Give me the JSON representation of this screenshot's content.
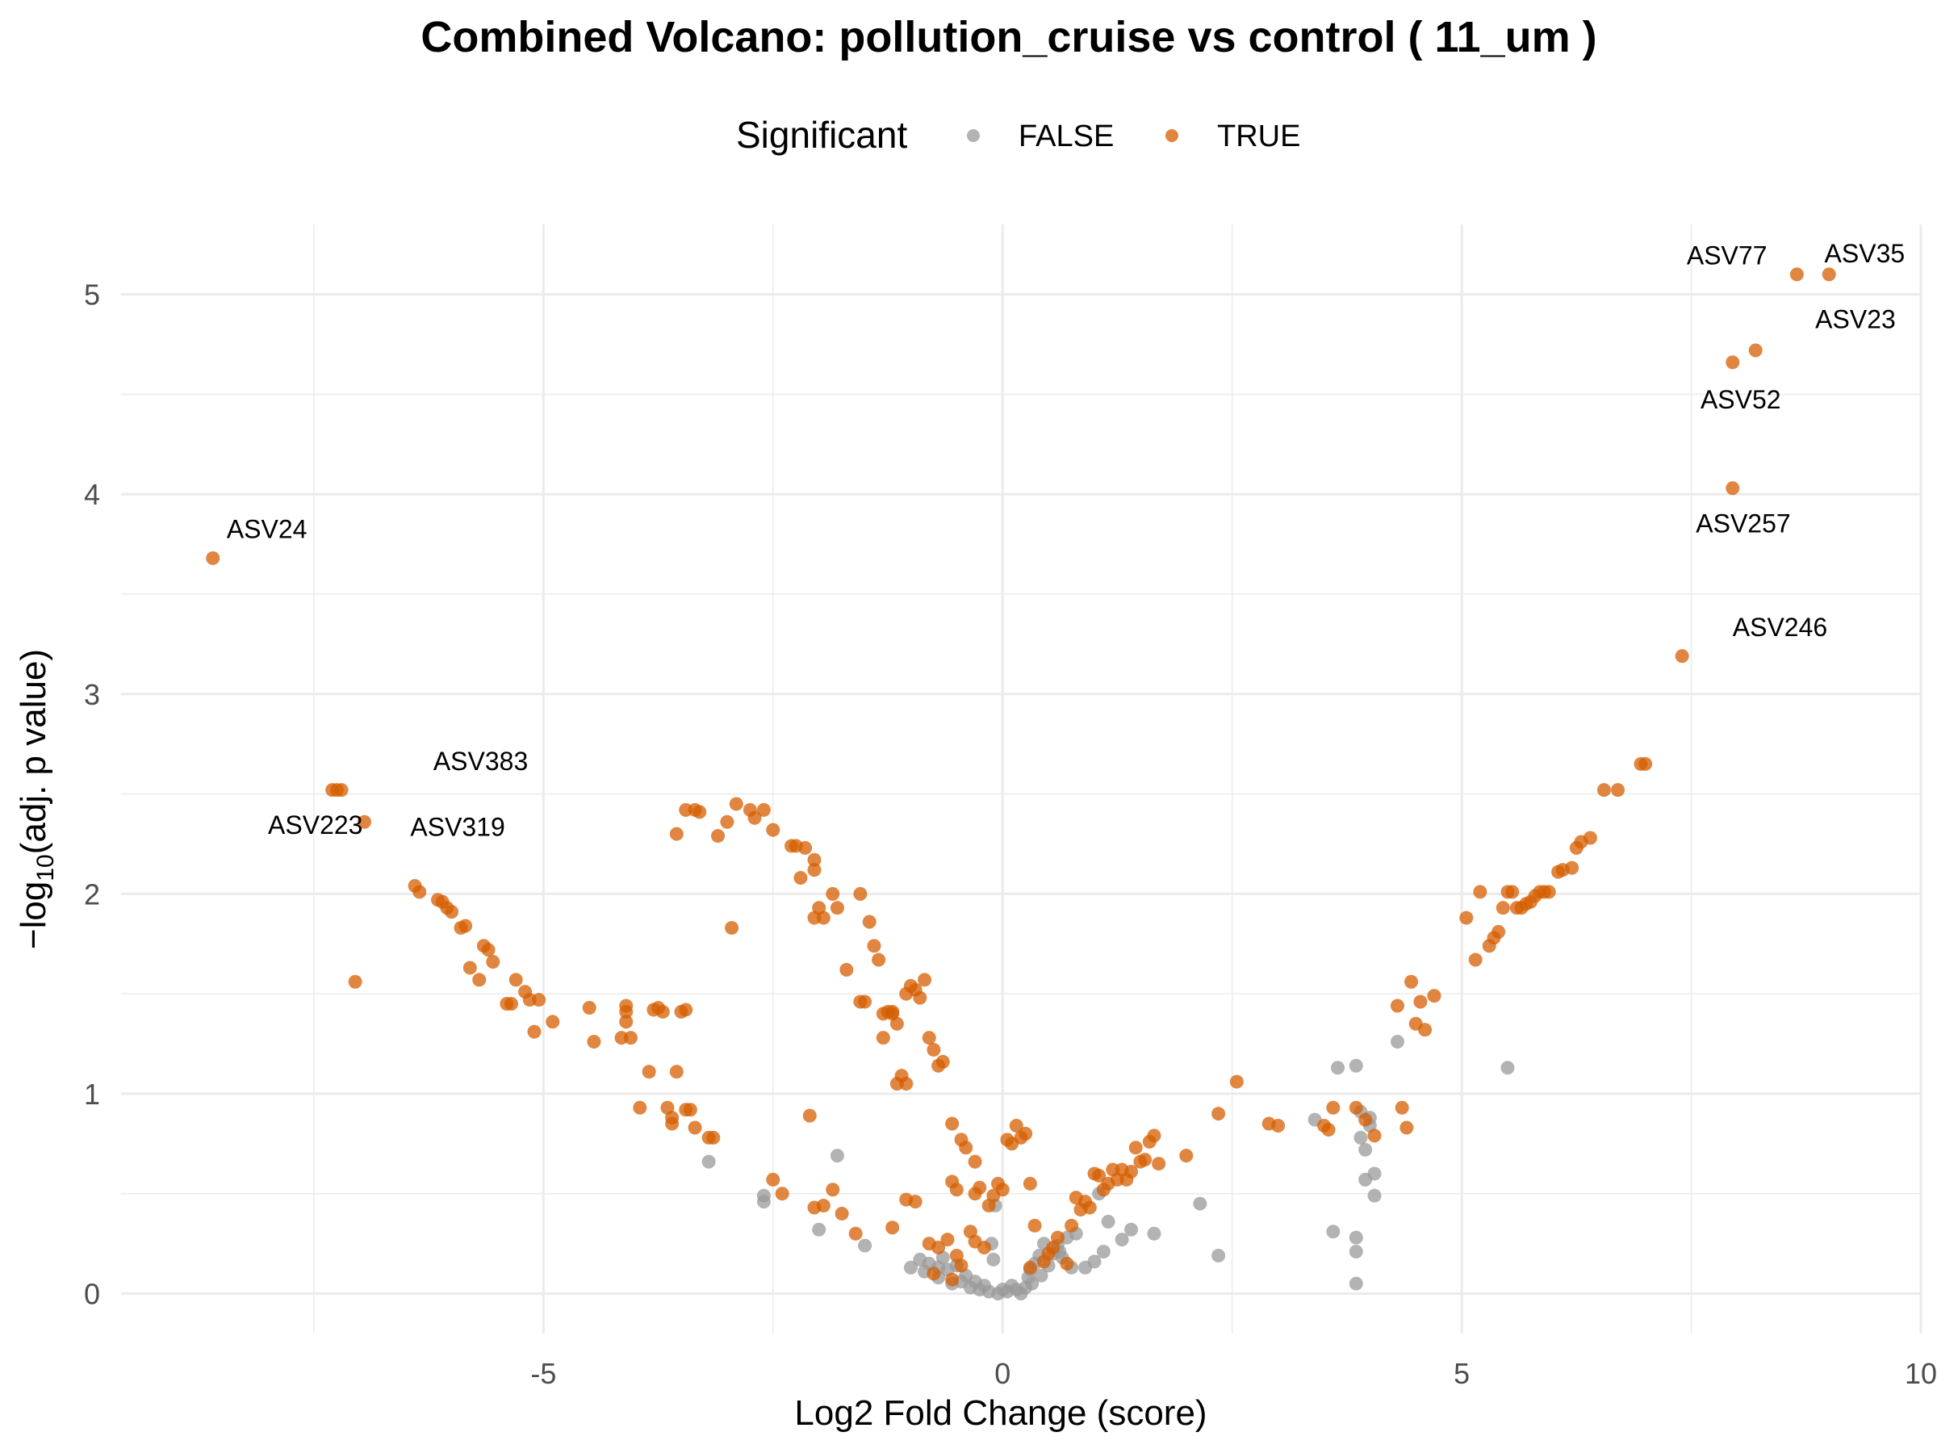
{
  "chart_data": {
    "type": "scatter",
    "title": "Combined Volcano: pollution_cruise vs control ( 11_um )",
    "xlabel": "Log2 Fold Change (score)",
    "ylabel_prefix": "−log",
    "ylabel_sub": "10",
    "ylabel_suffix": "(adj. p value)",
    "xlim": [
      -9.6,
      10.0
    ],
    "ylim": [
      -0.2,
      5.35
    ],
    "x_ticks": [
      -5,
      0,
      5,
      10
    ],
    "x_tick_labels": [
      "-5",
      "0",
      "5",
      "10"
    ],
    "y_ticks": [
      0,
      1,
      2,
      3,
      4,
      5
    ],
    "y_tick_labels": [
      "0",
      "1",
      "2",
      "3",
      "4",
      "5"
    ],
    "grid": true,
    "legend": {
      "title": "Significant",
      "position": "top",
      "entries": [
        {
          "label": "FALSE",
          "color": "#999999"
        },
        {
          "label": "TRUE",
          "color": "#d55e00"
        }
      ]
    },
    "colors": {
      "FALSE": "#999999",
      "TRUE": "#d55e00"
    },
    "series": [
      {
        "name": "FALSE",
        "color": "#999999",
        "points": [
          [
            -3.2,
            0.66
          ],
          [
            -2.6,
            0.46
          ],
          [
            -2.6,
            0.49
          ],
          [
            -1.8,
            0.69
          ],
          [
            -2.0,
            0.32
          ],
          [
            -1.5,
            0.24
          ],
          [
            -1.0,
            0.13
          ],
          [
            -0.9,
            0.17
          ],
          [
            -0.85,
            0.11
          ],
          [
            -0.8,
            0.15
          ],
          [
            -0.7,
            0.08
          ],
          [
            -0.65,
            0.18
          ],
          [
            -0.6,
            0.12
          ],
          [
            -0.55,
            0.05
          ],
          [
            -0.5,
            0.14
          ],
          [
            -0.4,
            0.09
          ],
          [
            -0.35,
            0.03
          ],
          [
            -0.3,
            0.06
          ],
          [
            -0.25,
            0.02
          ],
          [
            -0.2,
            0.04
          ],
          [
            -0.15,
            0.01
          ],
          [
            -0.12,
            0.25
          ],
          [
            -0.1,
            0.17
          ],
          [
            -0.08,
            0.44
          ],
          [
            -0.05,
            0.0
          ],
          [
            0.0,
            0.02
          ],
          [
            0.05,
            0.01
          ],
          [
            0.1,
            0.04
          ],
          [
            0.15,
            0.02
          ],
          [
            0.2,
            0.0
          ],
          [
            0.25,
            0.03
          ],
          [
            0.3,
            0.12
          ],
          [
            0.32,
            0.05
          ],
          [
            0.35,
            0.15
          ],
          [
            0.4,
            0.19
          ],
          [
            0.42,
            0.09
          ],
          [
            0.45,
            0.25
          ],
          [
            0.5,
            0.14
          ],
          [
            0.55,
            0.2
          ],
          [
            0.6,
            0.24
          ],
          [
            0.65,
            0.18
          ],
          [
            0.7,
            0.28
          ],
          [
            0.75,
            0.13
          ],
          [
            0.8,
            0.3
          ],
          [
            0.9,
            0.13
          ],
          [
            1.0,
            0.16
          ],
          [
            1.05,
            0.5
          ],
          [
            1.1,
            0.21
          ],
          [
            1.15,
            0.36
          ],
          [
            1.3,
            0.27
          ],
          [
            1.4,
            0.32
          ],
          [
            1.65,
            0.3
          ],
          [
            2.15,
            0.45
          ],
          [
            2.35,
            0.19
          ],
          [
            3.4,
            0.87
          ],
          [
            3.6,
            0.31
          ],
          [
            3.65,
            1.13
          ],
          [
            3.85,
            1.14
          ],
          [
            3.85,
            0.28
          ],
          [
            3.85,
            0.05
          ],
          [
            3.85,
            0.21
          ],
          [
            3.9,
            0.91
          ],
          [
            3.9,
            0.78
          ],
          [
            3.95,
            0.72
          ],
          [
            3.95,
            0.57
          ],
          [
            4.0,
            0.88
          ],
          [
            4.0,
            0.84
          ],
          [
            4.05,
            0.6
          ],
          [
            4.05,
            0.49
          ],
          [
            4.3,
            1.26
          ],
          [
            5.5,
            1.13
          ],
          [
            -0.45,
            0.06
          ],
          [
            -0.7,
            0.13
          ],
          [
            0.28,
            0.08
          ],
          [
            0.62,
            0.21
          ]
        ]
      },
      {
        "name": "TRUE",
        "color": "#d55e00",
        "points": [
          [
            -8.6,
            3.68
          ],
          [
            -7.3,
            2.52
          ],
          [
            -7.25,
            2.52
          ],
          [
            -7.2,
            2.52
          ],
          [
            -7.05,
            1.56
          ],
          [
            -6.95,
            2.36
          ],
          [
            -6.4,
            2.04
          ],
          [
            -6.35,
            2.01
          ],
          [
            -6.15,
            1.97
          ],
          [
            -6.1,
            1.96
          ],
          [
            -6.05,
            1.93
          ],
          [
            -6.0,
            1.91
          ],
          [
            -5.9,
            1.83
          ],
          [
            -5.85,
            1.84
          ],
          [
            -5.8,
            1.63
          ],
          [
            -5.7,
            1.57
          ],
          [
            -5.65,
            1.74
          ],
          [
            -5.6,
            1.72
          ],
          [
            -5.55,
            1.66
          ],
          [
            -5.4,
            1.45
          ],
          [
            -5.35,
            1.45
          ],
          [
            -5.3,
            1.57
          ],
          [
            -5.2,
            1.51
          ],
          [
            -5.15,
            1.47
          ],
          [
            -5.1,
            1.31
          ],
          [
            -5.05,
            1.47
          ],
          [
            -4.9,
            1.36
          ],
          [
            -4.5,
            1.43
          ],
          [
            -4.45,
            1.26
          ],
          [
            -4.15,
            1.28
          ],
          [
            -4.1,
            1.44
          ],
          [
            -4.1,
            1.41
          ],
          [
            -4.1,
            1.36
          ],
          [
            -4.05,
            1.28
          ],
          [
            -3.95,
            0.93
          ],
          [
            -3.85,
            1.11
          ],
          [
            -3.8,
            1.42
          ],
          [
            -3.75,
            1.43
          ],
          [
            -3.7,
            1.41
          ],
          [
            -3.65,
            0.93
          ],
          [
            -3.6,
            0.88
          ],
          [
            -3.6,
            0.85
          ],
          [
            -3.55,
            1.11
          ],
          [
            -3.5,
            1.41
          ],
          [
            -3.45,
            1.42
          ],
          [
            -3.45,
            0.92
          ],
          [
            -3.4,
            0.92
          ],
          [
            -3.35,
            0.83
          ],
          [
            -3.2,
            0.78
          ],
          [
            -3.15,
            0.78
          ],
          [
            -3.0,
            2.36
          ],
          [
            -2.9,
            2.45
          ],
          [
            -2.75,
            2.42
          ],
          [
            -2.7,
            2.38
          ],
          [
            -2.6,
            2.42
          ],
          [
            -2.5,
            2.32
          ],
          [
            -2.3,
            2.24
          ],
          [
            -2.25,
            2.24
          ],
          [
            -2.15,
            2.23
          ],
          [
            -2.05,
            2.17
          ],
          [
            -2.05,
            2.12
          ],
          [
            -2.2,
            2.08
          ],
          [
            -2.0,
            1.93
          ],
          [
            -2.05,
            1.88
          ],
          [
            -1.95,
            1.88
          ],
          [
            -1.85,
            2.0
          ],
          [
            -1.8,
            1.93
          ],
          [
            -1.55,
            2.0
          ],
          [
            -1.45,
            1.86
          ],
          [
            -1.4,
            1.74
          ],
          [
            -1.35,
            1.67
          ],
          [
            -1.25,
            1.41
          ],
          [
            -1.2,
            1.41
          ],
          [
            -1.15,
            1.05
          ],
          [
            -1.1,
            1.09
          ],
          [
            -1.05,
            1.05
          ],
          [
            -1.0,
            1.54
          ],
          [
            -0.95,
            1.52
          ],
          [
            -0.9,
            1.48
          ],
          [
            -0.85,
            1.57
          ],
          [
            -0.8,
            1.28
          ],
          [
            -0.75,
            1.22
          ],
          [
            -0.7,
            1.14
          ],
          [
            -0.65,
            1.16
          ],
          [
            -0.55,
            0.85
          ],
          [
            -0.45,
            0.77
          ],
          [
            -0.3,
            0.66
          ],
          [
            -2.5,
            0.57
          ],
          [
            -2.4,
            0.5
          ],
          [
            -2.1,
            0.89
          ],
          [
            -2.05,
            0.43
          ],
          [
            -1.95,
            0.44
          ],
          [
            -1.85,
            0.52
          ],
          [
            -1.75,
            0.4
          ],
          [
            -1.6,
            0.3
          ],
          [
            -1.2,
            0.33
          ],
          [
            -1.05,
            0.47
          ],
          [
            -0.95,
            0.46
          ],
          [
            -0.8,
            0.25
          ],
          [
            -0.7,
            0.23
          ],
          [
            -0.6,
            0.27
          ],
          [
            -0.5,
            0.19
          ],
          [
            -0.45,
            0.14
          ],
          [
            -0.35,
            0.31
          ],
          [
            -0.3,
            0.26
          ],
          [
            -0.3,
            0.5
          ],
          [
            -0.25,
            0.53
          ],
          [
            -0.2,
            0.23
          ],
          [
            -0.15,
            0.44
          ],
          [
            -0.1,
            0.49
          ],
          [
            -0.05,
            0.55
          ],
          [
            0.0,
            0.52
          ],
          [
            0.05,
            0.77
          ],
          [
            0.1,
            0.75
          ],
          [
            0.15,
            0.84
          ],
          [
            0.2,
            0.78
          ],
          [
            0.25,
            0.8
          ],
          [
            -3.55,
            2.3
          ],
          [
            -3.45,
            2.42
          ],
          [
            -3.35,
            2.42
          ],
          [
            -3.3,
            2.41
          ],
          [
            -3.1,
            2.29
          ],
          [
            -2.95,
            1.83
          ],
          [
            -1.7,
            1.62
          ],
          [
            -1.55,
            1.46
          ],
          [
            -1.5,
            1.46
          ],
          [
            -1.3,
            1.4
          ],
          [
            -1.3,
            1.28
          ],
          [
            -1.2,
            1.4
          ],
          [
            -1.15,
            1.35
          ],
          [
            -1.05,
            1.5
          ],
          [
            -0.55,
            0.56
          ],
          [
            -0.5,
            0.52
          ],
          [
            -0.4,
            0.73
          ],
          [
            0.3,
            0.55
          ],
          [
            0.35,
            0.34
          ],
          [
            0.45,
            0.16
          ],
          [
            0.5,
            0.2
          ],
          [
            0.55,
            0.23
          ],
          [
            0.6,
            0.28
          ],
          [
            0.7,
            0.15
          ],
          [
            0.75,
            0.34
          ],
          [
            0.8,
            0.48
          ],
          [
            0.85,
            0.42
          ],
          [
            0.9,
            0.46
          ],
          [
            0.95,
            0.43
          ],
          [
            1.0,
            0.6
          ],
          [
            1.05,
            0.59
          ],
          [
            1.1,
            0.52
          ],
          [
            1.15,
            0.55
          ],
          [
            1.2,
            0.62
          ],
          [
            1.25,
            0.57
          ],
          [
            1.3,
            0.62
          ],
          [
            1.35,
            0.57
          ],
          [
            1.4,
            0.61
          ],
          [
            1.45,
            0.73
          ],
          [
            1.5,
            0.66
          ],
          [
            1.55,
            0.67
          ],
          [
            1.6,
            0.76
          ],
          [
            1.65,
            0.79
          ],
          [
            1.7,
            0.65
          ],
          [
            2.0,
            0.69
          ],
          [
            2.35,
            0.9
          ],
          [
            2.55,
            1.06
          ],
          [
            2.9,
            0.85
          ],
          [
            3.0,
            0.84
          ],
          [
            3.5,
            0.84
          ],
          [
            3.55,
            0.82
          ],
          [
            3.6,
            0.93
          ],
          [
            3.85,
            0.93
          ],
          [
            3.95,
            0.87
          ],
          [
            4.05,
            0.79
          ],
          [
            4.3,
            1.44
          ],
          [
            4.35,
            0.93
          ],
          [
            4.4,
            0.83
          ],
          [
            4.45,
            1.56
          ],
          [
            4.5,
            1.35
          ],
          [
            4.55,
            1.46
          ],
          [
            4.6,
            1.32
          ],
          [
            4.7,
            1.49
          ],
          [
            5.05,
            1.88
          ],
          [
            5.15,
            1.67
          ],
          [
            5.2,
            2.01
          ],
          [
            5.3,
            1.74
          ],
          [
            5.35,
            1.78
          ],
          [
            5.4,
            1.81
          ],
          [
            5.45,
            1.93
          ],
          [
            5.5,
            2.01
          ],
          [
            5.55,
            2.01
          ],
          [
            5.6,
            1.93
          ],
          [
            5.65,
            1.93
          ],
          [
            5.7,
            1.95
          ],
          [
            5.75,
            1.96
          ],
          [
            5.8,
            1.99
          ],
          [
            5.85,
            2.01
          ],
          [
            5.9,
            2.01
          ],
          [
            5.95,
            2.01
          ],
          [
            6.05,
            2.11
          ],
          [
            6.1,
            2.12
          ],
          [
            6.2,
            2.13
          ],
          [
            6.25,
            2.23
          ],
          [
            6.3,
            2.26
          ],
          [
            6.4,
            2.28
          ],
          [
            6.55,
            2.52
          ],
          [
            6.7,
            2.52
          ],
          [
            6.95,
            2.65
          ],
          [
            7.0,
            2.65
          ],
          [
            7.4,
            3.19
          ],
          [
            7.95,
            4.03
          ],
          [
            7.95,
            4.66
          ],
          [
            8.2,
            4.72
          ],
          [
            8.65,
            5.1
          ],
          [
            9.0,
            5.1
          ],
          [
            -0.75,
            0.1
          ],
          [
            -0.55,
            0.07
          ],
          [
            0.3,
            0.13
          ]
        ]
      }
    ],
    "annotations": [
      {
        "label": "ASV24",
        "x": -8.6,
        "y": 3.68,
        "dx": -8.45,
        "dy": 3.78
      },
      {
        "label": "ASV383",
        "x": -7.25,
        "y": 2.52,
        "dx": -6.2,
        "dy": 2.62
      },
      {
        "label": "ASV223",
        "x": -7.3,
        "y": 2.52,
        "dx": -8.0,
        "dy": 2.3
      },
      {
        "label": "ASV319",
        "x": -6.95,
        "y": 2.36,
        "dx": -6.45,
        "dy": 2.29
      },
      {
        "label": "ASV77",
        "x": 8.65,
        "y": 5.1,
        "dx": 7.45,
        "dy": 5.15
      },
      {
        "label": "ASV35",
        "x": 9.0,
        "y": 5.1,
        "dx": 8.95,
        "dy": 5.16
      },
      {
        "label": "ASV23",
        "x": 8.2,
        "y": 4.72,
        "dx": 8.85,
        "dy": 4.83
      },
      {
        "label": "ASV52",
        "x": 7.95,
        "y": 4.66,
        "dx": 7.6,
        "dy": 4.43
      },
      {
        "label": "ASV257",
        "x": 7.95,
        "y": 4.03,
        "dx": 7.55,
        "dy": 3.81
      },
      {
        "label": "ASV246",
        "x": 7.4,
        "y": 3.19,
        "dx": 7.95,
        "dy": 3.29
      }
    ]
  }
}
